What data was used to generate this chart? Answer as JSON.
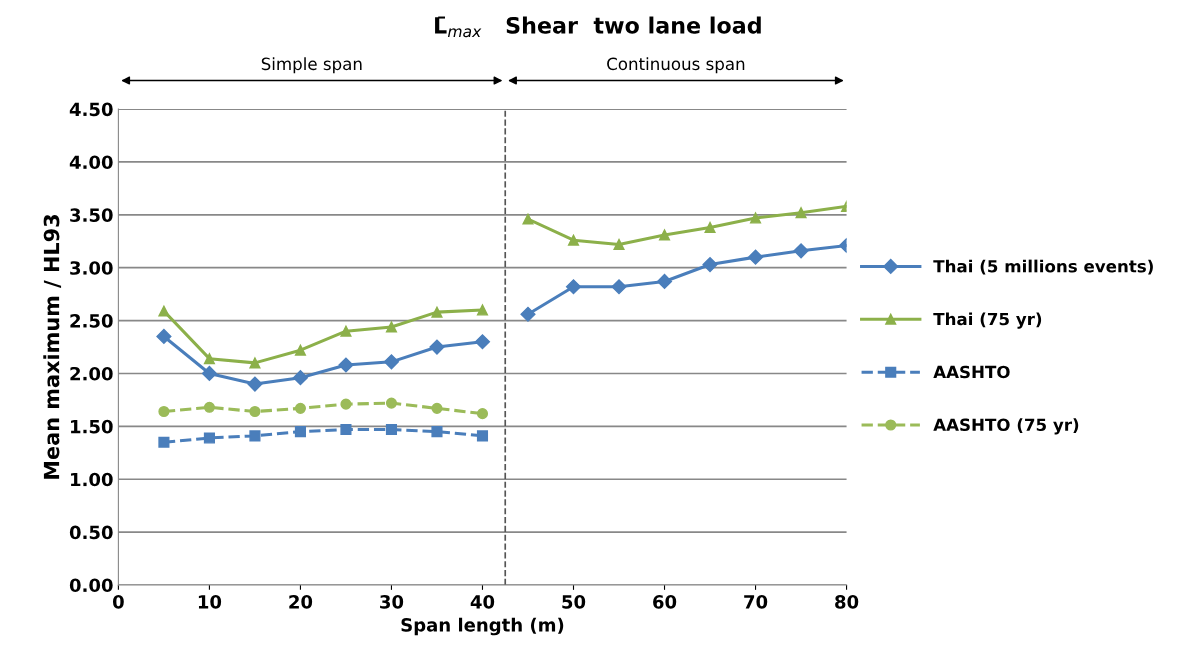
{
  "chart_data": {
    "type": "line",
    "title": "L̄$_{max}$   Shear  two lane load",
    "xlabel": "Span length (m)",
    "ylabel": "Mean maximum / HL93",
    "x": [
      5,
      10,
      15,
      20,
      25,
      30,
      35,
      40,
      45,
      50,
      55,
      60,
      65,
      70,
      75,
      80
    ],
    "series": [
      {
        "name": "Thai (5 millions events)",
        "color": "#4a7ebb",
        "marker": "diamond",
        "line_style": "solid",
        "values": [
          2.35,
          2.0,
          1.9,
          1.96,
          2.08,
          2.11,
          2.25,
          2.3,
          2.56,
          2.82,
          2.82,
          2.87,
          3.03,
          3.1,
          3.16,
          3.21
        ]
      },
      {
        "name": "Thai (75 yr)",
        "color": "#8cb04a",
        "marker": "triangle",
        "line_style": "solid",
        "values": [
          2.59,
          2.14,
          2.1,
          2.22,
          2.4,
          2.44,
          2.58,
          2.6,
          3.46,
          3.26,
          3.22,
          3.31,
          3.38,
          3.47,
          3.52,
          3.58
        ]
      },
      {
        "name": "AASHTO",
        "color": "#4a7ebb",
        "marker": "square",
        "line_style": "dashed",
        "x": [
          5,
          10,
          15,
          20,
          25,
          30,
          35,
          40
        ],
        "values": [
          1.35,
          1.39,
          1.41,
          1.45,
          1.47,
          1.47,
          1.45,
          1.41
        ]
      },
      {
        "name": "AASHTO (75 yr)",
        "color": "#9bbb59",
        "marker": "circle",
        "line_style": "dashed",
        "x": [
          5,
          10,
          15,
          20,
          25,
          30,
          35,
          40
        ],
        "values": [
          1.64,
          1.68,
          1.64,
          1.67,
          1.71,
          1.72,
          1.67,
          1.62
        ]
      }
    ],
    "xlim": [
      0,
      80
    ],
    "xticks": [
      0,
      10,
      20,
      30,
      40,
      50,
      60,
      70,
      80
    ],
    "ylim": [
      0,
      4.5
    ],
    "yticks": [
      {
        "value": 0,
        "label": "0.00"
      },
      {
        "value": 0.5,
        "label": "0.50"
      },
      {
        "value": 1,
        "label": "1.00"
      },
      {
        "value": 1.5,
        "label": "1.50"
      },
      {
        "value": 2,
        "label": "2.00"
      },
      {
        "value": 2.5,
        "label": "2.50"
      },
      {
        "value": 3,
        "label": "3.00"
      },
      {
        "value": 3.5,
        "label": "3.50"
      },
      {
        "value": 4,
        "label": "4.00"
      },
      {
        "value": 4.5,
        "label": "4.50"
      }
    ],
    "ref_lines": [
      {
        "axis": "x",
        "value": 42.5,
        "color": "#555555",
        "line_style": "dashed"
      }
    ],
    "annotations": [
      "Simple span",
      "Continuous span"
    ],
    "grid": "y",
    "legend": "right"
  }
}
